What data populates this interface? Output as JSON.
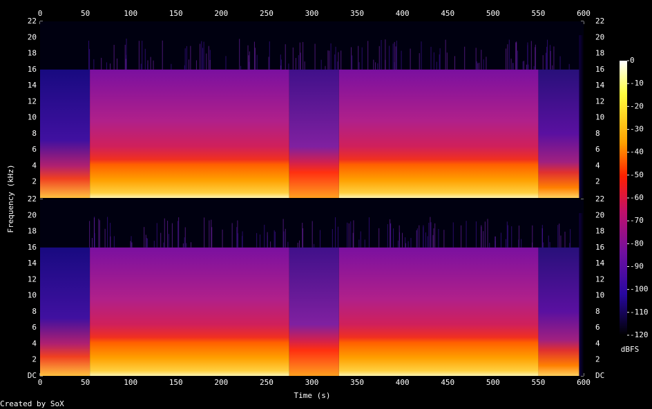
{
  "chart_data": {
    "type": "spectrogram",
    "xlabel": "Time (s)",
    "ylabel": "Frequency (kHz)",
    "xlim": [
      0,
      600
    ],
    "xticks": [
      0,
      50,
      100,
      150,
      200,
      250,
      300,
      350,
      400,
      450,
      500,
      550,
      600
    ],
    "ylim": [
      0,
      22
    ],
    "panels": [
      {
        "yticks": [
          2,
          4,
          6,
          8,
          10,
          12,
          14,
          16,
          18,
          20,
          22
        ]
      },
      {
        "yticks": [
          {
            "value": 0,
            "label": "DC"
          },
          2,
          4,
          6,
          8,
          10,
          12,
          14,
          16,
          18,
          20,
          22
        ]
      }
    ],
    "clim": [
      -120,
      0
    ],
    "cticks": [
      0,
      -10,
      -20,
      -30,
      -40,
      -50,
      -60,
      -70,
      -80,
      -90,
      -100,
      -110,
      -120
    ],
    "clabel": "dBFS",
    "footer": "Created by SoX"
  }
}
